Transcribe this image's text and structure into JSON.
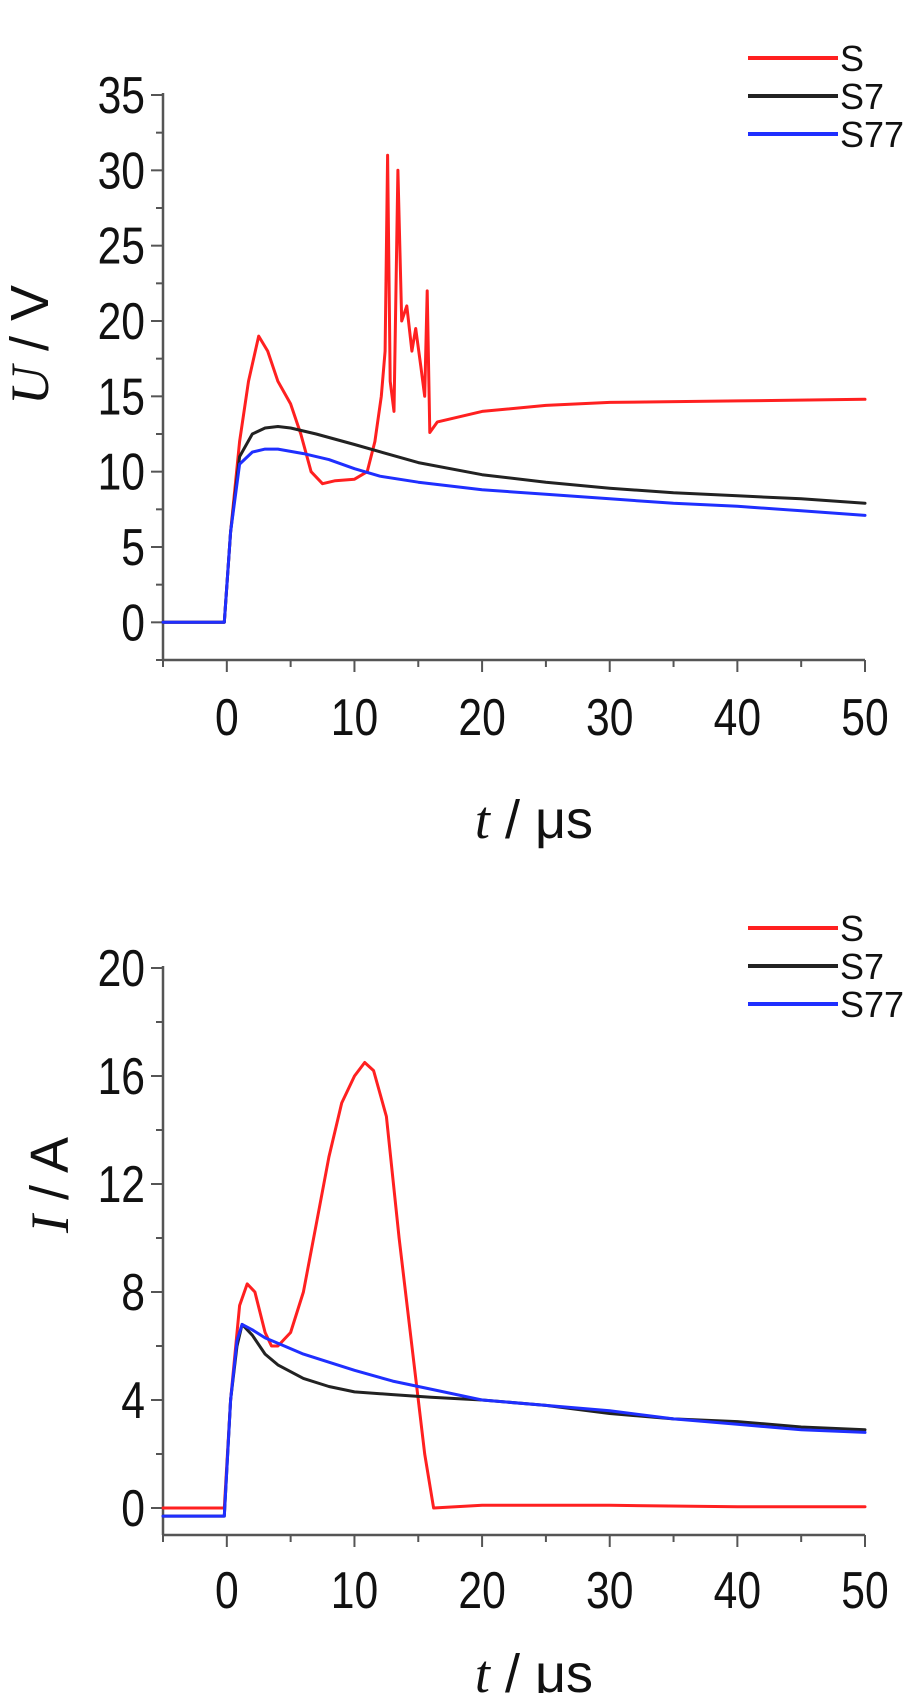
{
  "chart_data": [
    {
      "type": "line",
      "xlabel": {
        "var": "t",
        "unit": "μs"
      },
      "ylabel": {
        "var": "U",
        "unit": "V"
      },
      "xlim": [
        -5,
        50
      ],
      "ylim": [
        -2.5,
        35
      ],
      "xticks": [
        0,
        10,
        20,
        30,
        40,
        50
      ],
      "yticks": [
        0,
        5,
        10,
        15,
        20,
        25,
        30,
        35
      ],
      "xtick_labels": [
        "0",
        "10",
        "20",
        "30",
        "40",
        "50"
      ],
      "ytick_labels": [
        "0",
        "5",
        "10",
        "15",
        "20",
        "25",
        "30",
        "35"
      ],
      "legend_position": "top-right",
      "series": [
        {
          "name": "S",
          "color": "#ff2020",
          "points": [
            [
              -5,
              0
            ],
            [
              -0.2,
              0
            ],
            [
              0.3,
              6
            ],
            [
              1,
              12
            ],
            [
              1.7,
              16
            ],
            [
              2.5,
              19
            ],
            [
              3.2,
              18
            ],
            [
              4,
              16
            ],
            [
              5,
              14.5
            ],
            [
              5.8,
              12.5
            ],
            [
              6.6,
              10
            ],
            [
              7.5,
              9.2
            ],
            [
              8.5,
              9.4
            ],
            [
              10,
              9.5
            ],
            [
              11,
              10
            ],
            [
              11.6,
              12
            ],
            [
              12.1,
              15
            ],
            [
              12.4,
              18
            ],
            [
              12.6,
              31
            ],
            [
              12.8,
              16
            ],
            [
              13.1,
              14
            ],
            [
              13.4,
              30
            ],
            [
              13.7,
              20
            ],
            [
              14.1,
              21
            ],
            [
              14.5,
              18
            ],
            [
              14.8,
              19.5
            ],
            [
              15.2,
              17
            ],
            [
              15.5,
              15
            ],
            [
              15.7,
              22
            ],
            [
              15.9,
              12.6
            ],
            [
              16.5,
              13.3
            ],
            [
              18,
              13.6
            ],
            [
              20,
              14
            ],
            [
              25,
              14.4
            ],
            [
              30,
              14.6
            ],
            [
              40,
              14.7
            ],
            [
              50,
              14.8
            ]
          ]
        },
        {
          "name": "S7",
          "color": "#222222",
          "points": [
            [
              -5,
              0
            ],
            [
              -0.2,
              0
            ],
            [
              0.3,
              6
            ],
            [
              1,
              11
            ],
            [
              2,
              12.5
            ],
            [
              3,
              12.9
            ],
            [
              4,
              13
            ],
            [
              5,
              12.9
            ],
            [
              7,
              12.5
            ],
            [
              10,
              11.8
            ],
            [
              15,
              10.6
            ],
            [
              20,
              9.8
            ],
            [
              25,
              9.3
            ],
            [
              30,
              8.9
            ],
            [
              35,
              8.6
            ],
            [
              40,
              8.4
            ],
            [
              45,
              8.2
            ],
            [
              50,
              7.9
            ]
          ]
        },
        {
          "name": "S77",
          "color": "#1f2fff",
          "points": [
            [
              -5,
              0
            ],
            [
              -0.2,
              0
            ],
            [
              0.3,
              6
            ],
            [
              1,
              10.5
            ],
            [
              2,
              11.3
            ],
            [
              3,
              11.5
            ],
            [
              4,
              11.5
            ],
            [
              6,
              11.2
            ],
            [
              8,
              10.8
            ],
            [
              10,
              10.2
            ],
            [
              12,
              9.7
            ],
            [
              15,
              9.3
            ],
            [
              20,
              8.8
            ],
            [
              25,
              8.5
            ],
            [
              30,
              8.2
            ],
            [
              35,
              7.9
            ],
            [
              40,
              7.7
            ],
            [
              45,
              7.4
            ],
            [
              50,
              7.1
            ]
          ]
        }
      ]
    },
    {
      "type": "line",
      "xlabel": {
        "var": "t",
        "unit": "μs"
      },
      "ylabel": {
        "var": "I",
        "unit": "A"
      },
      "xlim": [
        -5,
        50
      ],
      "ylim": [
        -1,
        20
      ],
      "xticks": [
        0,
        10,
        20,
        30,
        40,
        50
      ],
      "yticks": [
        0,
        4,
        8,
        12,
        16,
        20
      ],
      "xtick_labels": [
        "0",
        "10",
        "20",
        "30",
        "40",
        "50"
      ],
      "ytick_labels": [
        "0",
        "4",
        "8",
        "12",
        "16",
        "20"
      ],
      "legend_position": "top-right",
      "series": [
        {
          "name": "S",
          "color": "#ff2020",
          "points": [
            [
              -5,
              0
            ],
            [
              -0.2,
              0
            ],
            [
              0.3,
              4
            ],
            [
              1,
              7.5
            ],
            [
              1.6,
              8.3
            ],
            [
              2.2,
              8
            ],
            [
              3,
              6.5
            ],
            [
              3.5,
              6
            ],
            [
              4,
              6
            ],
            [
              5,
              6.5
            ],
            [
              6,
              8
            ],
            [
              7,
              10.5
            ],
            [
              8,
              13
            ],
            [
              9,
              15
            ],
            [
              10,
              16
            ],
            [
              10.8,
              16.5
            ],
            [
              11.5,
              16.2
            ],
            [
              12.5,
              14.5
            ],
            [
              13.5,
              10
            ],
            [
              14.5,
              6
            ],
            [
              15.5,
              2
            ],
            [
              16.2,
              0
            ],
            [
              20,
              0.1
            ],
            [
              30,
              0.1
            ],
            [
              40,
              0.05
            ],
            [
              50,
              0.05
            ]
          ]
        },
        {
          "name": "S7",
          "color": "#222222",
          "points": [
            [
              -5,
              -0.3
            ],
            [
              -0.2,
              -0.3
            ],
            [
              0.3,
              4
            ],
            [
              0.8,
              6
            ],
            [
              1.2,
              6.8
            ],
            [
              2,
              6.4
            ],
            [
              3,
              5.7
            ],
            [
              4,
              5.3
            ],
            [
              6,
              4.8
            ],
            [
              8,
              4.5
            ],
            [
              10,
              4.3
            ],
            [
              13,
              4.2
            ],
            [
              16,
              4.1
            ],
            [
              20,
              4
            ],
            [
              25,
              3.8
            ],
            [
              30,
              3.5
            ],
            [
              35,
              3.3
            ],
            [
              40,
              3.2
            ],
            [
              45,
              3
            ],
            [
              50,
              2.9
            ]
          ]
        },
        {
          "name": "S77",
          "color": "#1f2fff",
          "points": [
            [
              -5,
              -0.3
            ],
            [
              -0.2,
              -0.3
            ],
            [
              0.3,
              4
            ],
            [
              0.8,
              6.2
            ],
            [
              1.2,
              6.8
            ],
            [
              2,
              6.6
            ],
            [
              3,
              6.3
            ],
            [
              4,
              6.1
            ],
            [
              6,
              5.7
            ],
            [
              8,
              5.4
            ],
            [
              10,
              5.1
            ],
            [
              13,
              4.7
            ],
            [
              15,
              4.5
            ],
            [
              20,
              4
            ],
            [
              25,
              3.8
            ],
            [
              30,
              3.6
            ],
            [
              35,
              3.3
            ],
            [
              40,
              3.1
            ],
            [
              45,
              2.9
            ],
            [
              50,
              2.8
            ]
          ]
        }
      ]
    }
  ]
}
